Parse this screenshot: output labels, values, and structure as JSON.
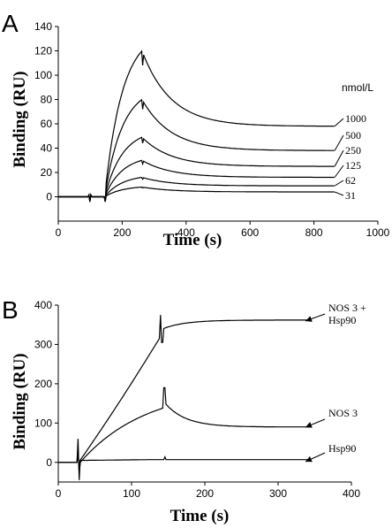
{
  "chart_data": [
    {
      "panel": "A",
      "type": "line",
      "xlabel": "Time (s)",
      "ylabel": "Binding (RU)",
      "xlim": [
        0,
        1000
      ],
      "ylim": [
        -20,
        140
      ],
      "xticks": [
        "0",
        "200",
        "400",
        "600",
        "800",
        "1000"
      ],
      "yticks": [
        "0",
        "20",
        "40",
        "60",
        "80",
        "100",
        "120",
        "140"
      ],
      "unit_label": "nmol/L",
      "series": [
        {
          "name": "1000",
          "amplitude": 120,
          "plateau": 58
        },
        {
          "name": "500",
          "amplitude": 80,
          "plateau": 38
        },
        {
          "name": "250",
          "amplitude": 49,
          "plateau": 25
        },
        {
          "name": "125",
          "amplitude": 30,
          "plateau": 16
        },
        {
          "name": "62",
          "amplitude": 16,
          "plateau": 9
        },
        {
          "name": "31",
          "amplitude": 8,
          "plateau": 4
        }
      ]
    },
    {
      "panel": "B",
      "type": "line",
      "xlabel": "Time (s)",
      "ylabel": "Binding (RU)",
      "xlim": [
        0,
        400
      ],
      "ylim": [
        -50,
        400
      ],
      "xticks": [
        "0",
        "100",
        "200",
        "300",
        "400"
      ],
      "yticks": [
        "0",
        "100",
        "200",
        "300",
        "400"
      ],
      "series": [
        {
          "name": "NOS 3 +",
          "name2": "Hsp90"
        },
        {
          "name": "NOS 3"
        },
        {
          "name": "Hsp90"
        }
      ]
    }
  ]
}
